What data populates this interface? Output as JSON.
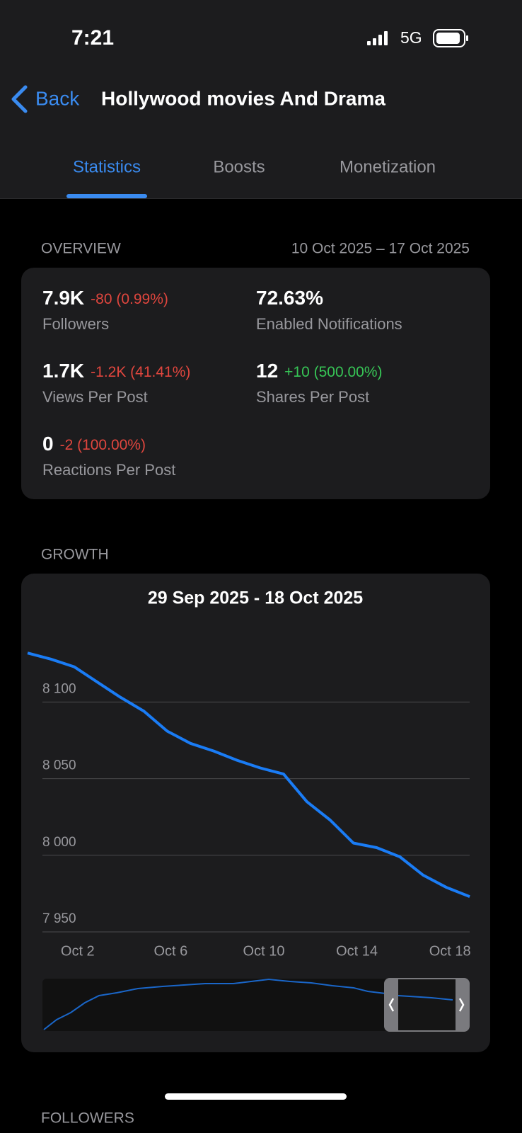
{
  "status": {
    "time": "7:21",
    "network": "5G"
  },
  "nav": {
    "back": "Back",
    "title": "Hollywood movies And Drama"
  },
  "tabs": [
    "Statistics",
    "Boosts",
    "Monetization"
  ],
  "overview": {
    "label": "OVERVIEW",
    "range": "10 Oct 2025 – 17 Oct 2025",
    "stats": [
      {
        "value": "7.9K",
        "change": "-80 (0.99%)",
        "label": "Followers"
      },
      {
        "value": "72.63%",
        "label": "Enabled Notifications"
      },
      {
        "value": "1.7K",
        "change": "-1.2K (41.41%)",
        "label": "Views Per Post"
      },
      {
        "value": "12",
        "change": "+10 (500.00%)",
        "label": "Shares Per Post"
      },
      {
        "value": "0",
        "change": "-2 (100.00%)",
        "label": "Reactions Per Post"
      }
    ]
  },
  "growth_label": "GROWTH",
  "chart_data": {
    "type": "line",
    "title": "29 Sep 2025 - 18 Oct 2025",
    "categories": [
      null,
      null,
      "Oct 2",
      null,
      null,
      null,
      "Oct 6",
      null,
      null,
      null,
      "Oct 10",
      null,
      null,
      null,
      "Oct 14",
      null,
      null,
      null,
      "Oct 18",
      null
    ],
    "values": [
      8132,
      8128,
      8123,
      8113,
      8103,
      8094,
      8081,
      8073,
      8068,
      8062,
      8057,
      8053,
      8035,
      8023,
      8008,
      8005,
      7999,
      7987,
      7979,
      7973
    ],
    "color": "#1a7cf5",
    "ylim": [
      7950,
      8150
    ],
    "yticks": [
      {
        "value": 7950,
        "label": "7 950"
      },
      {
        "value": 8000,
        "label": "8 000"
      },
      {
        "value": 8050,
        "label": "8 050"
      },
      {
        "value": 8100,
        "label": "8 100"
      }
    ],
    "grid": true
  },
  "next_section": "FOLLOWERS"
}
